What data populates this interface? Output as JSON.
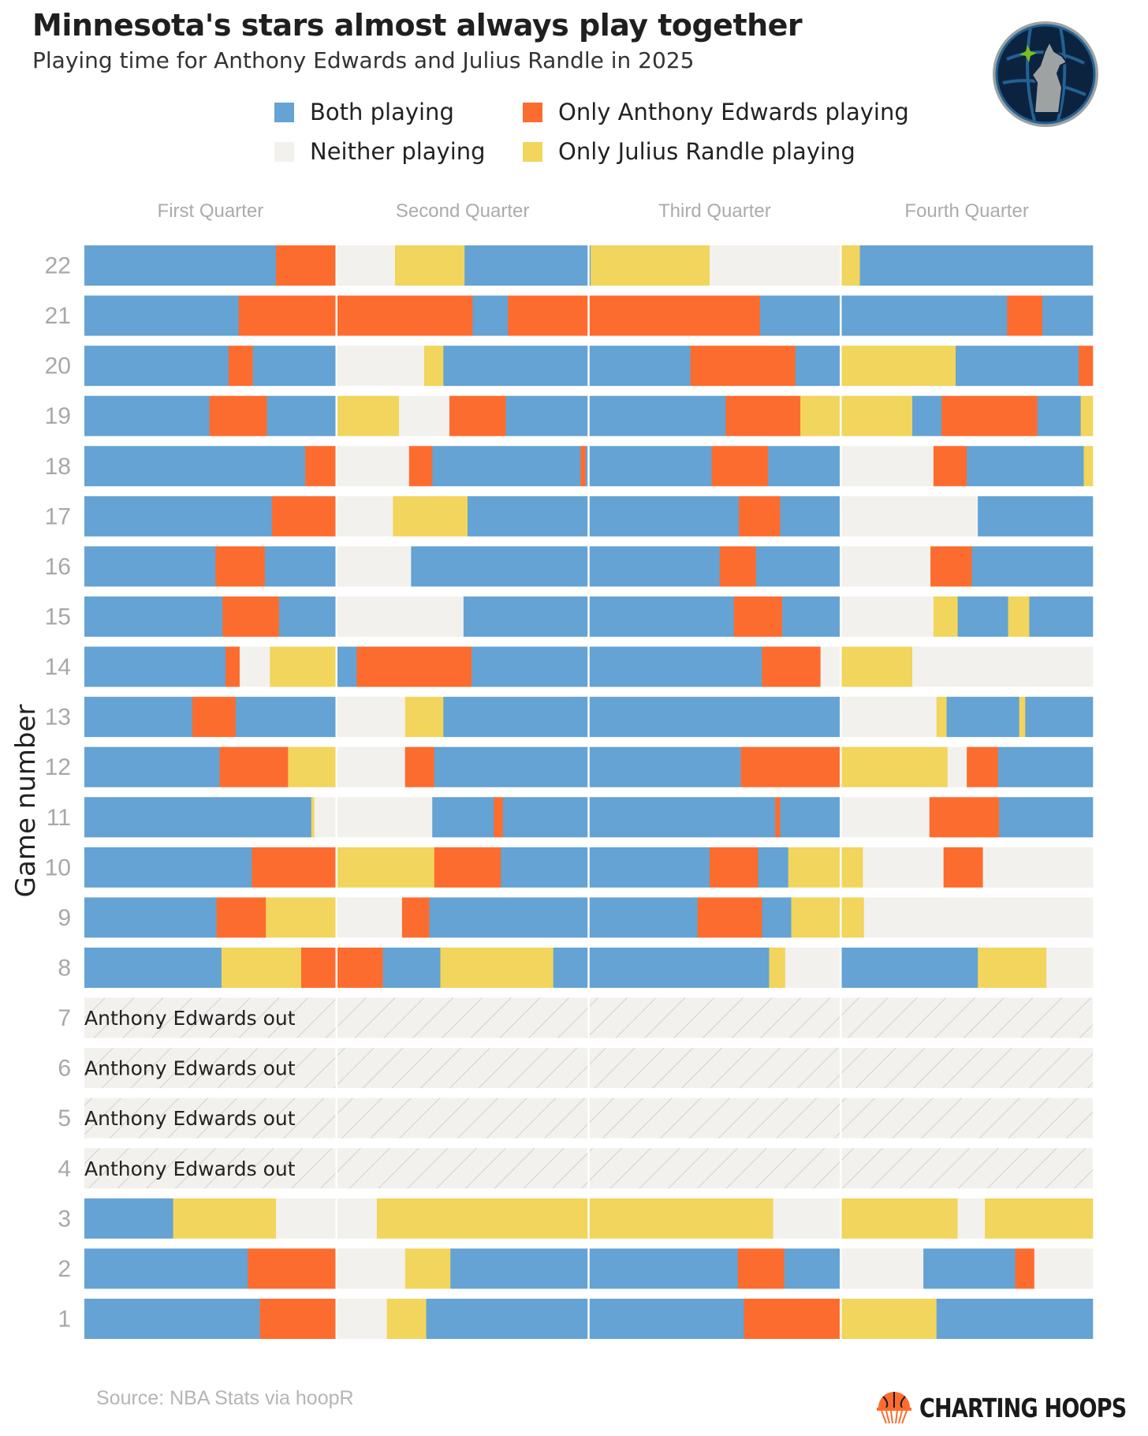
{
  "title": "Minnesota's stars almost always play together",
  "subtitle": "Playing time for Anthony Edwards and Julius Randle in 2025",
  "legend": [
    {
      "key": "B",
      "label": "Both playing",
      "color": "#64A3D3"
    },
    {
      "key": "E",
      "label": "Only Anthony Edwards playing",
      "color": "#FD6C2F"
    },
    {
      "key": "N",
      "label": "Neither playing",
      "color": "#F3F1EE"
    },
    {
      "key": "R",
      "label": "Only Julius Randle playing",
      "color": "#F1D55C"
    }
  ],
  "source": "Source: NBA Stats via hoopR",
  "brand": "CHARTING HOOPS",
  "logo": "Minnesota Timberwolves logo",
  "chart_data": {
    "type": "stacked-timeline",
    "ylabel": "Game number",
    "xlabel": "",
    "x_units": "fraction of regulation game (0-1)",
    "quarters": [
      "First Quarter",
      "Second Quarter",
      "Third Quarter",
      "Fourth Quarter"
    ],
    "colors": {
      "B": "#64A3D3",
      "E": "#FD6C2F",
      "N": "#F3F1EE",
      "R": "#F1D55C"
    },
    "out_label": "Anthony Edwards out",
    "games": [
      {
        "game": 22,
        "segments": [
          [
            "B",
            0.19
          ],
          [
            "E",
            0.249
          ],
          [
            "N",
            0.308
          ],
          [
            "R",
            0.377
          ],
          [
            "B",
            0.502
          ],
          [
            "R",
            0.62
          ],
          [
            "N",
            0.749
          ],
          [
            "R",
            0.769
          ],
          [
            "B",
            1.0
          ]
        ]
      },
      {
        "game": 21,
        "segments": [
          [
            "B",
            0.153
          ],
          [
            "E",
            0.385
          ],
          [
            "B",
            0.42
          ],
          [
            "E",
            0.67
          ],
          [
            "B",
            0.915
          ],
          [
            "E",
            0.95
          ],
          [
            "B",
            1.0
          ]
        ]
      },
      {
        "game": 20,
        "segments": [
          [
            "B",
            0.143
          ],
          [
            "E",
            0.167
          ],
          [
            "B",
            0.25
          ],
          [
            "N",
            0.337
          ],
          [
            "R",
            0.356
          ],
          [
            "B",
            0.601
          ],
          [
            "E",
            0.705
          ],
          [
            "B",
            0.75
          ],
          [
            "R",
            0.864
          ],
          [
            "B",
            0.986
          ],
          [
            "E",
            1.0
          ]
        ]
      },
      {
        "game": 19,
        "segments": [
          [
            "B",
            0.124
          ],
          [
            "E",
            0.181
          ],
          [
            "B",
            0.25
          ],
          [
            "R",
            0.312
          ],
          [
            "N",
            0.362
          ],
          [
            "E",
            0.418
          ],
          [
            "B",
            0.636
          ],
          [
            "E",
            0.71
          ],
          [
            "R",
            0.821
          ],
          [
            "B",
            0.85
          ],
          [
            "E",
            0.945
          ],
          [
            "B",
            0.988
          ],
          [
            "R",
            1.0
          ]
        ]
      },
      {
        "game": 18,
        "segments": [
          [
            "B",
            0.219
          ],
          [
            "E",
            0.25
          ],
          [
            "N",
            0.322
          ],
          [
            "E",
            0.345
          ],
          [
            "B",
            0.492
          ],
          [
            "E",
            0.497
          ],
          [
            "B",
            0.622
          ],
          [
            "E",
            0.678
          ],
          [
            "B",
            0.75
          ],
          [
            "N",
            0.842
          ],
          [
            "E",
            0.875
          ],
          [
            "B",
            0.991
          ],
          [
            "R",
            1.0
          ]
        ]
      },
      {
        "game": 17,
        "segments": [
          [
            "B",
            0.186
          ],
          [
            "E",
            0.25
          ],
          [
            "N",
            0.306
          ],
          [
            "R",
            0.38
          ],
          [
            "B",
            0.649
          ],
          [
            "E",
            0.69
          ],
          [
            "B",
            0.75
          ],
          [
            "N",
            0.886
          ],
          [
            "B",
            1.0
          ]
        ]
      },
      {
        "game": 16,
        "segments": [
          [
            "B",
            0.13
          ],
          [
            "E",
            0.179
          ],
          [
            "B",
            0.25
          ],
          [
            "N",
            0.324
          ],
          [
            "B",
            0.63
          ],
          [
            "E",
            0.666
          ],
          [
            "B",
            0.75
          ],
          [
            "N",
            0.839
          ],
          [
            "E",
            0.88
          ],
          [
            "B",
            1.0
          ]
        ]
      },
      {
        "game": 15,
        "segments": [
          [
            "B",
            0.137
          ],
          [
            "E",
            0.193
          ],
          [
            "B",
            0.25
          ],
          [
            "N",
            0.376
          ],
          [
            "B",
            0.644
          ],
          [
            "E",
            0.692
          ],
          [
            "B",
            0.75
          ],
          [
            "N",
            0.842
          ],
          [
            "R",
            0.866
          ],
          [
            "B",
            0.916
          ],
          [
            "R",
            0.937
          ],
          [
            "B",
            1.0
          ]
        ]
      },
      {
        "game": 14,
        "segments": [
          [
            "B",
            0.14
          ],
          [
            "E",
            0.154
          ],
          [
            "N",
            0.184
          ],
          [
            "R",
            0.25
          ],
          [
            "B",
            0.27
          ],
          [
            "E",
            0.384
          ],
          [
            "B",
            0.672
          ],
          [
            "E",
            0.73
          ],
          [
            "N",
            0.75
          ],
          [
            "R",
            0.821
          ],
          [
            "N",
            1.0
          ]
        ]
      },
      {
        "game": 13,
        "segments": [
          [
            "B",
            0.107
          ],
          [
            "E",
            0.15
          ],
          [
            "B",
            0.25
          ],
          [
            "N",
            0.318
          ],
          [
            "R",
            0.356
          ],
          [
            "B",
            0.75
          ],
          [
            "N",
            0.845
          ],
          [
            "R",
            0.855
          ],
          [
            "B",
            0.927
          ],
          [
            "R",
            0.933
          ],
          [
            "B",
            1.0
          ]
        ]
      },
      {
        "game": 12,
        "segments": [
          [
            "B",
            0.134
          ],
          [
            "E",
            0.202
          ],
          [
            "R",
            0.25
          ],
          [
            "N",
            0.318
          ],
          [
            "E",
            0.347
          ],
          [
            "B",
            0.651
          ],
          [
            "E",
            0.75
          ],
          [
            "R",
            0.856
          ],
          [
            "N",
            0.875
          ],
          [
            "E",
            0.906
          ],
          [
            "B",
            1.0
          ]
        ]
      },
      {
        "game": 11,
        "segments": [
          [
            "B",
            0.225
          ],
          [
            "R",
            0.228
          ],
          [
            "N",
            0.345
          ],
          [
            "B",
            0.406
          ],
          [
            "E",
            0.415
          ],
          [
            "B",
            0.685
          ],
          [
            "E",
            0.69
          ],
          [
            "B",
            0.75
          ],
          [
            "N",
            0.838
          ],
          [
            "E",
            0.907
          ],
          [
            "B",
            1.0
          ]
        ]
      },
      {
        "game": 10,
        "segments": [
          [
            "B",
            0.166
          ],
          [
            "E",
            0.25
          ],
          [
            "R",
            0.347
          ],
          [
            "E",
            0.413
          ],
          [
            "B",
            0.62
          ],
          [
            "E",
            0.668
          ],
          [
            "B",
            0.698
          ],
          [
            "R",
            0.772
          ],
          [
            "N",
            0.852
          ],
          [
            "E",
            0.891
          ],
          [
            "N",
            1.0
          ]
        ]
      },
      {
        "game": 9,
        "segments": [
          [
            "B",
            0.131
          ],
          [
            "E",
            0.18
          ],
          [
            "R",
            0.25
          ],
          [
            "N",
            0.315
          ],
          [
            "E",
            0.342
          ],
          [
            "B",
            0.608
          ],
          [
            "E",
            0.672
          ],
          [
            "B",
            0.701
          ],
          [
            "R",
            0.773
          ],
          [
            "N",
            1.0
          ]
        ]
      },
      {
        "game": 8,
        "segments": [
          [
            "B",
            0.136
          ],
          [
            "R",
            0.215
          ],
          [
            "E",
            0.296
          ],
          [
            "B",
            0.353
          ],
          [
            "R",
            0.465
          ],
          [
            "B",
            0.679
          ],
          [
            "R",
            0.695
          ],
          [
            "N",
            0.75
          ],
          [
            "B",
            0.886
          ],
          [
            "R",
            0.954
          ],
          [
            "N",
            1.0
          ]
        ]
      },
      {
        "game": 7,
        "out": true
      },
      {
        "game": 6,
        "out": true
      },
      {
        "game": 5,
        "out": true
      },
      {
        "game": 4,
        "out": true
      },
      {
        "game": 3,
        "segments": [
          [
            "B",
            0.088
          ],
          [
            "R",
            0.19
          ],
          [
            "N",
            0.29
          ],
          [
            "R",
            0.683
          ],
          [
            "N",
            0.75
          ],
          [
            "R",
            0.866
          ],
          [
            "N",
            0.893
          ],
          [
            "R",
            1.0
          ]
        ]
      },
      {
        "game": 2,
        "segments": [
          [
            "B",
            0.162
          ],
          [
            "E",
            0.25
          ],
          [
            "N",
            0.318
          ],
          [
            "R",
            0.363
          ],
          [
            "B",
            0.648
          ],
          [
            "E",
            0.694
          ],
          [
            "B",
            0.75
          ],
          [
            "N",
            0.832
          ],
          [
            "B",
            0.923
          ],
          [
            "E",
            0.942
          ],
          [
            "N",
            1.0
          ]
        ]
      },
      {
        "game": 1,
        "segments": [
          [
            "B",
            0.174
          ],
          [
            "E",
            0.25
          ],
          [
            "N",
            0.3
          ],
          [
            "R",
            0.339
          ],
          [
            "B",
            0.654
          ],
          [
            "E",
            0.75
          ],
          [
            "R",
            0.845
          ],
          [
            "B",
            1.0
          ]
        ]
      }
    ]
  }
}
